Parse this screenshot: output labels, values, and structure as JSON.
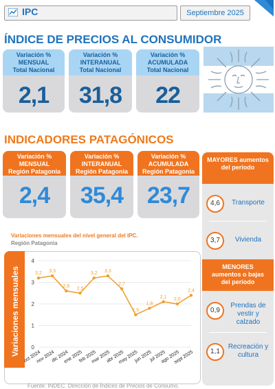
{
  "header": {
    "title": "IPC",
    "date": "Septiembre 2025"
  },
  "national": {
    "heading": "ÍNDICE DE PRECIOS AL CONSUMIDOR",
    "cards": [
      {
        "line1": "Variación %",
        "line2": "MENSUAL",
        "line3": "Total Nacional",
        "value": "2,1"
      },
      {
        "line1": "Variación %",
        "line2": "INTERANUAL",
        "line3": "Total Nacional",
        "value": "31,8"
      },
      {
        "line1": "Variación %",
        "line2": "ACUMULADA",
        "line3": "Total Nacional",
        "value": "22"
      }
    ]
  },
  "patagonia": {
    "heading": "INDICADORES PATAGÓNICOS",
    "cards": [
      {
        "line1": "Variación %",
        "line2": "MENSUAL",
        "line3": "Región Patagonia",
        "value": "2,4"
      },
      {
        "line1": "Variación %",
        "line2": "INTERANUAL",
        "line3": "Región Patagonia",
        "value": "35,4"
      },
      {
        "line1": "Variación %",
        "line2": "ACUMULADA",
        "line3": "Región Patagonia",
        "value": "23,7"
      }
    ]
  },
  "right_panel": {
    "mayores_title": "MAYORES aumentos del período",
    "mayores": [
      {
        "value": "4,6",
        "label": "Transporte"
      },
      {
        "value": "3,7",
        "label": "Vivienda"
      }
    ],
    "menores_title": "MENORES aumentos o bajas del período",
    "menores": [
      {
        "value": "0,9",
        "label": "Prendas de vestir y calzado"
      },
      {
        "value": "1,1",
        "label": "Recreación y cultura"
      }
    ]
  },
  "chart_title": "Variaciones mensuales del nivel general del IPC.",
  "chart_subtitle": "Región Patagonia",
  "footer": "Fuente: INDEC. Dirección de Índices de Precios de Consumo.",
  "colors": {
    "blue": "#1e73be",
    "orange": "#f0741f",
    "light_blue": "#a9d5f4",
    "card_gray": "#d9d9dc"
  },
  "chart_data": {
    "type": "line",
    "categories": [
      "oct 2024",
      "nov 2024",
      "dic 2024",
      "ene 2025",
      "feb 2025",
      "mar 2025",
      "abr 2025",
      "may 2025",
      "jun 2025",
      "jul 2025",
      "ago 2025",
      "sept 2025"
    ],
    "values": [
      3.2,
      3.3,
      2.6,
      2.5,
      3.2,
      3.3,
      2.7,
      1.5,
      1.8,
      2.1,
      2.0,
      2.4
    ],
    "data_labels": [
      "3,2",
      "3,3",
      "2,6",
      "2,5",
      "3,2",
      "3,3",
      "2,7",
      "1,5",
      "1,8",
      "2,1",
      "2,0",
      "2,4"
    ],
    "ylabel": "Variaciones mensuales",
    "ylim": [
      0,
      4
    ],
    "yticks": [
      0,
      1,
      2,
      3,
      4
    ],
    "grid": true,
    "color": "#f0a030"
  }
}
